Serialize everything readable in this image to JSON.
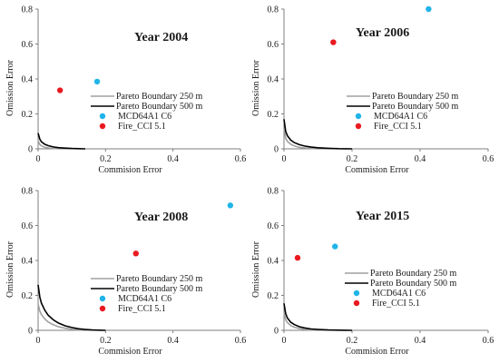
{
  "chart_data": [
    {
      "type": "scatter",
      "title": "Year 2004",
      "xlabel": "Commision Error",
      "ylabel": "Omission Error",
      "xlim": [
        0,
        0.6
      ],
      "ylim": [
        0,
        0.8
      ],
      "xticks": [
        "0",
        "0.2",
        "0.4",
        "0.6"
      ],
      "yticks": [
        "0",
        "0.2",
        "0.4",
        "0.6",
        "0.8"
      ],
      "grid": false,
      "legend_position": "bottom-right",
      "series": [
        {
          "name": "Pareto Boundary 250 m",
          "kind": "line",
          "color": "#a0a0a0",
          "x": [
            0,
            0.005,
            0.01,
            0.02,
            0.03,
            0.045,
            0.06,
            0.08
          ],
          "y": [
            0.045,
            0.025,
            0.017,
            0.009,
            0.005,
            0.002,
            0.001,
            0
          ]
        },
        {
          "name": "Pareto Boundary 500 m",
          "kind": "line",
          "color": "#000000",
          "x": [
            0,
            0.005,
            0.01,
            0.02,
            0.03,
            0.045,
            0.06,
            0.08,
            0.1,
            0.12,
            0.14
          ],
          "y": [
            0.09,
            0.055,
            0.04,
            0.026,
            0.018,
            0.011,
            0.007,
            0.004,
            0.002,
            0.001,
            0
          ]
        },
        {
          "name": "MCD64A1 C6",
          "kind": "point",
          "color": "#1fb4e8",
          "x": [
            0.175
          ],
          "y": [
            0.385
          ]
        },
        {
          "name": "Fire_CCI 5.1",
          "kind": "point",
          "color": "#e8191f",
          "x": [
            0.065
          ],
          "y": [
            0.335
          ]
        }
      ]
    },
    {
      "type": "scatter",
      "title": "Year 2006",
      "xlabel": "Commision Error",
      "ylabel": "Omission Error",
      "xlim": [
        0,
        0.6
      ],
      "ylim": [
        0,
        0.8
      ],
      "xticks": [
        "0",
        "0.2",
        "0.4",
        "0.6"
      ],
      "yticks": [
        "0",
        "0.2",
        "0.4",
        "0.6",
        "0.8"
      ],
      "grid": false,
      "legend_position": "bottom-right",
      "series": [
        {
          "name": "Pareto Boundary 250 m",
          "kind": "line",
          "color": "#a0a0a0",
          "x": [
            0,
            0.005,
            0.01,
            0.02,
            0.03,
            0.04,
            0.05,
            0.065,
            0.08,
            0.1
          ],
          "y": [
            0.12,
            0.06,
            0.042,
            0.026,
            0.017,
            0.011,
            0.007,
            0.004,
            0.002,
            0
          ]
        },
        {
          "name": "Pareto Boundary 500 m",
          "kind": "line",
          "color": "#000000",
          "x": [
            0,
            0.005,
            0.01,
            0.02,
            0.03,
            0.045,
            0.06,
            0.08,
            0.1,
            0.13,
            0.16,
            0.2
          ],
          "y": [
            0.17,
            0.1,
            0.075,
            0.05,
            0.036,
            0.024,
            0.016,
            0.01,
            0.006,
            0.003,
            0.001,
            0
          ]
        },
        {
          "name": "MCD64A1 C6",
          "kind": "point",
          "color": "#1fb4e8",
          "x": [
            0.425
          ],
          "y": [
            0.8
          ]
        },
        {
          "name": "Fire_CCI 5.1",
          "kind": "point",
          "color": "#e8191f",
          "x": [
            0.145
          ],
          "y": [
            0.61
          ]
        }
      ]
    },
    {
      "type": "scatter",
      "title": "Year 2008",
      "xlabel": "Commision Error",
      "ylabel": "Omission Error",
      "xlim": [
        0,
        0.6
      ],
      "ylim": [
        0,
        0.8
      ],
      "xticks": [
        "0",
        "0.2",
        "0.4",
        "0.6"
      ],
      "yticks": [
        "0",
        "0.2",
        "0.4",
        "0.6",
        "0.8"
      ],
      "grid": false,
      "legend_position": "bottom-center",
      "series": [
        {
          "name": "Pareto Boundary 250 m",
          "kind": "line",
          "color": "#a0a0a0",
          "x": [
            0,
            0.005,
            0.01,
            0.02,
            0.03,
            0.045,
            0.06,
            0.08,
            0.1,
            0.12,
            0.14
          ],
          "y": [
            0.15,
            0.11,
            0.09,
            0.065,
            0.048,
            0.032,
            0.021,
            0.012,
            0.006,
            0.002,
            0
          ]
        },
        {
          "name": "Pareto Boundary 500 m",
          "kind": "line",
          "color": "#000000",
          "x": [
            0,
            0.005,
            0.01,
            0.02,
            0.03,
            0.045,
            0.06,
            0.08,
            0.1,
            0.12,
            0.14,
            0.16,
            0.18,
            0.2
          ],
          "y": [
            0.26,
            0.19,
            0.155,
            0.115,
            0.087,
            0.06,
            0.042,
            0.026,
            0.016,
            0.009,
            0.005,
            0.002,
            0.001,
            0
          ]
        },
        {
          "name": "MCD64A1 C6",
          "kind": "point",
          "color": "#1fb4e8",
          "x": [
            0.57
          ],
          "y": [
            0.715
          ]
        },
        {
          "name": "Fire_CCI 5.1",
          "kind": "point",
          "color": "#e8191f",
          "x": [
            0.29
          ],
          "y": [
            0.44
          ]
        }
      ]
    },
    {
      "type": "scatter",
      "title": "Year 2015",
      "xlabel": "Commision Error",
      "ylabel": "Omission Error",
      "xlim": [
        0,
        0.6
      ],
      "ylim": [
        0,
        0.8
      ],
      "xticks": [
        "0",
        "0.2",
        "0.4",
        "0.6"
      ],
      "yticks": [
        "0",
        "0.2",
        "0.4",
        "0.6",
        "0.8"
      ],
      "grid": false,
      "legend_position": "bottom-right",
      "series": [
        {
          "name": "Pareto Boundary 250 m",
          "kind": "line",
          "color": "#a0a0a0",
          "x": [
            0,
            0.005,
            0.01,
            0.02,
            0.03,
            0.045,
            0.06,
            0.08,
            0.1
          ],
          "y": [
            0.1,
            0.06,
            0.044,
            0.027,
            0.018,
            0.01,
            0.005,
            0.002,
            0
          ]
        },
        {
          "name": "Pareto Boundary 500 m",
          "kind": "line",
          "color": "#000000",
          "x": [
            0,
            0.005,
            0.01,
            0.02,
            0.03,
            0.045,
            0.06,
            0.08,
            0.1,
            0.13,
            0.16,
            0.2
          ],
          "y": [
            0.155,
            0.095,
            0.07,
            0.046,
            0.033,
            0.021,
            0.014,
            0.008,
            0.005,
            0.002,
            0.001,
            0
          ]
        },
        {
          "name": "MCD64A1 C6",
          "kind": "point",
          "color": "#1fb4e8",
          "x": [
            0.15
          ],
          "y": [
            0.48
          ]
        },
        {
          "name": "Fire_CCI 5.1",
          "kind": "point",
          "color": "#e8191f",
          "x": [
            0.04
          ],
          "y": [
            0.415
          ]
        }
      ]
    }
  ]
}
